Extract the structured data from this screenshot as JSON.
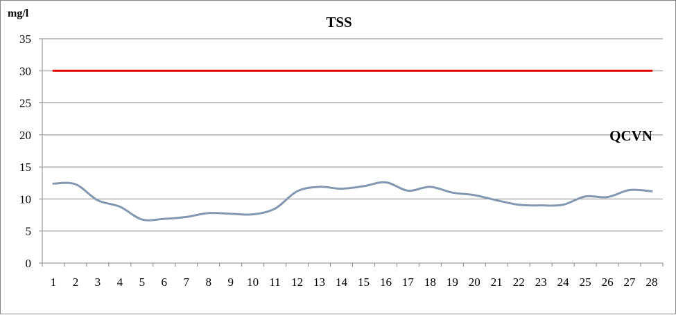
{
  "chart_data": {
    "type": "line",
    "title": "TSS",
    "ylabel": "mg/l",
    "xlabel": "",
    "ylim": [
      0,
      35
    ],
    "yticks": [
      0,
      5,
      10,
      15,
      20,
      25,
      30,
      35
    ],
    "x": [
      1,
      2,
      3,
      4,
      5,
      6,
      7,
      8,
      9,
      10,
      11,
      12,
      13,
      14,
      15,
      16,
      17,
      18,
      19,
      20,
      21,
      22,
      23,
      24,
      25,
      26,
      27,
      28
    ],
    "grid": true,
    "series": [
      {
        "values": [
          12.4,
          12.3,
          9.8,
          8.8,
          6.8,
          6.9,
          7.2,
          7.8,
          7.7,
          7.6,
          8.5,
          11.2,
          11.9,
          11.6,
          12.0,
          12.6,
          11.3,
          11.9,
          11.0,
          10.6,
          9.8,
          9.1,
          9.0,
          9.1,
          10.4,
          10.3,
          11.4,
          11.2
        ],
        "color": "#8497b0"
      },
      {
        "values": [
          30,
          30,
          30,
          30,
          30,
          30,
          30,
          30,
          30,
          30,
          30,
          30,
          30,
          30,
          30,
          30,
          30,
          30,
          30,
          30,
          30,
          30,
          30,
          30,
          30,
          30,
          30,
          30
        ],
        "color": "#e00000"
      }
    ],
    "annotations": [
      {
        "text": "QCVN"
      }
    ]
  }
}
